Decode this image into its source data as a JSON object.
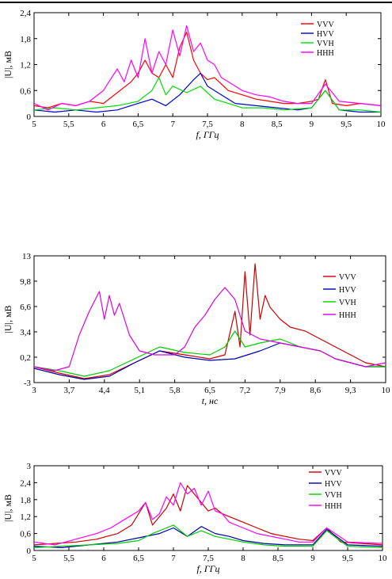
{
  "chart_data": [
    {
      "type": "line",
      "xlabel": "f, ГГц",
      "ylabel": "|U|, мВ",
      "xlim": [
        5,
        10
      ],
      "ylim": [
        0,
        2.4
      ],
      "xticks": [
        "5",
        "5,5",
        "6",
        "6,5",
        "7",
        "7,5",
        "8",
        "8,5",
        "9",
        "9,5",
        "10"
      ],
      "yticks": [
        "0",
        "0,6",
        "1,2",
        "1,8",
        "2,4"
      ],
      "legend_position": "top-right",
      "series": [
        {
          "name": "VVV",
          "color": "#ff0000",
          "x": [
            5.0,
            5.2,
            5.4,
            5.6,
            5.8,
            6.0,
            6.2,
            6.4,
            6.5,
            6.6,
            6.7,
            6.8,
            6.9,
            7.0,
            7.1,
            7.2,
            7.3,
            7.4,
            7.5,
            7.6,
            7.7,
            7.8,
            8.0,
            8.2,
            8.4,
            8.6,
            8.8,
            9.0,
            9.1,
            9.2,
            9.3,
            9.5,
            9.7,
            10.0
          ],
          "y": [
            0.25,
            0.2,
            0.3,
            0.25,
            0.35,
            0.3,
            0.55,
            0.8,
            1.0,
            1.3,
            1.0,
            0.9,
            1.2,
            0.9,
            1.6,
            1.95,
            1.3,
            1.0,
            0.85,
            0.9,
            0.75,
            0.6,
            0.5,
            0.4,
            0.35,
            0.3,
            0.3,
            0.35,
            0.4,
            0.85,
            0.3,
            0.25,
            0.3,
            0.25
          ]
        },
        {
          "name": "HVV",
          "color": "#0000cc",
          "x": [
            5.0,
            5.3,
            5.6,
            5.9,
            6.2,
            6.5,
            6.7,
            6.9,
            7.1,
            7.3,
            7.4,
            7.5,
            7.7,
            7.9,
            8.2,
            8.5,
            8.8,
            9.0,
            9.2,
            9.4,
            9.7,
            10.0
          ],
          "y": [
            0.15,
            0.1,
            0.15,
            0.1,
            0.15,
            0.3,
            0.4,
            0.25,
            0.5,
            0.85,
            1.0,
            0.7,
            0.5,
            0.3,
            0.25,
            0.2,
            0.15,
            0.2,
            0.6,
            0.15,
            0.1,
            0.1
          ]
        },
        {
          "name": "VVH",
          "color": "#00dd00",
          "x": [
            5.0,
            5.3,
            5.6,
            5.9,
            6.2,
            6.5,
            6.7,
            6.8,
            6.9,
            7.0,
            7.2,
            7.4,
            7.5,
            7.6,
            7.8,
            8.0,
            8.3,
            8.6,
            9.0,
            9.2,
            9.4,
            9.7,
            10.0
          ],
          "y": [
            0.15,
            0.2,
            0.15,
            0.2,
            0.25,
            0.35,
            0.6,
            0.9,
            0.5,
            0.7,
            0.55,
            0.7,
            0.55,
            0.4,
            0.3,
            0.2,
            0.2,
            0.15,
            0.2,
            0.6,
            0.15,
            0.15,
            0.1
          ]
        },
        {
          "name": "HHH",
          "color": "#ff00ff",
          "x": [
            5.0,
            5.2,
            5.4,
            5.6,
            5.8,
            6.0,
            6.2,
            6.3,
            6.4,
            6.5,
            6.6,
            6.7,
            6.8,
            6.9,
            7.0,
            7.1,
            7.2,
            7.3,
            7.4,
            7.5,
            7.6,
            7.7,
            7.8,
            8.0,
            8.2,
            8.4,
            8.6,
            8.8,
            9.0,
            9.2,
            9.4,
            9.7,
            10.0
          ],
          "y": [
            0.3,
            0.15,
            0.3,
            0.25,
            0.35,
            0.6,
            1.1,
            0.8,
            1.3,
            0.9,
            1.8,
            1.0,
            1.5,
            1.2,
            2.0,
            1.4,
            2.1,
            1.5,
            1.7,
            1.3,
            1.2,
            0.9,
            0.8,
            0.6,
            0.5,
            0.45,
            0.35,
            0.3,
            0.3,
            0.75,
            0.35,
            0.3,
            0.25
          ]
        }
      ]
    },
    {
      "type": "line",
      "xlabel": "t, нс",
      "ylabel": "|U|, мВ",
      "xlim": [
        3,
        10
      ],
      "ylim": [
        -3,
        13
      ],
      "xticks": [
        "3",
        "3,7",
        "4,4",
        "5,1",
        "5,8",
        "6,5",
        "7,2",
        "7,9",
        "8,6",
        "9,3",
        "10"
      ],
      "yticks": [
        "-3",
        "0,2",
        "3,4",
        "6,6",
        "9,8",
        "13"
      ],
      "legend_position": "right",
      "series": [
        {
          "name": "VVV",
          "color": "#cc0000",
          "x": [
            3.0,
            3.5,
            4.0,
            4.5,
            5.0,
            5.5,
            6.0,
            6.5,
            6.8,
            7.0,
            7.1,
            7.2,
            7.3,
            7.4,
            7.5,
            7.6,
            7.7,
            7.9,
            8.1,
            8.4,
            8.7,
            9.0,
            9.3,
            9.6,
            10.0
          ],
          "y": [
            -1.0,
            -1.8,
            -2.5,
            -2.0,
            -0.5,
            1.0,
            0.5,
            0.0,
            0.5,
            6.0,
            1.5,
            11.0,
            3.0,
            12.0,
            5.0,
            8.0,
            6.5,
            5.0,
            4.0,
            3.5,
            2.5,
            1.5,
            0.5,
            -0.5,
            -1.0
          ]
        },
        {
          "name": "HVV",
          "color": "#0000aa",
          "x": [
            3.0,
            3.5,
            4.0,
            4.5,
            5.0,
            5.5,
            6.0,
            6.5,
            7.0,
            7.5,
            7.9,
            8.3,
            8.7,
            9.0,
            9.3,
            9.6,
            10.0
          ],
          "y": [
            -1.2,
            -2.0,
            -2.6,
            -2.2,
            -0.5,
            1.0,
            0.2,
            -0.2,
            0.0,
            1.0,
            2.0,
            1.5,
            1.0,
            0.0,
            -0.5,
            -1.0,
            -1.0
          ]
        },
        {
          "name": "VVH",
          "color": "#00cc00",
          "x": [
            3.0,
            3.5,
            4.0,
            4.5,
            5.0,
            5.5,
            6.0,
            6.5,
            6.8,
            7.0,
            7.2,
            7.5,
            7.9,
            8.3,
            8.7,
            9.0,
            9.3,
            9.6,
            10.0
          ],
          "y": [
            -1.0,
            -1.5,
            -2.2,
            -1.5,
            0.0,
            1.5,
            0.8,
            0.5,
            1.5,
            3.5,
            1.5,
            2.0,
            2.5,
            1.5,
            1.0,
            0.0,
            -0.5,
            -1.0,
            -1.0
          ]
        },
        {
          "name": "HHH",
          "color": "#dd00dd",
          "x": [
            3.0,
            3.4,
            3.7,
            3.9,
            4.1,
            4.3,
            4.4,
            4.5,
            4.6,
            4.7,
            4.9,
            5.1,
            5.4,
            5.8,
            6.0,
            6.2,
            6.4,
            6.6,
            6.8,
            7.0,
            7.2,
            7.5,
            7.9,
            8.3,
            8.7,
            9.0,
            9.3,
            9.6,
            10.0
          ],
          "y": [
            -1.0,
            -1.5,
            -1.0,
            3.0,
            6.0,
            8.5,
            5.0,
            8.0,
            5.5,
            7.0,
            3.0,
            1.0,
            0.5,
            0.5,
            1.5,
            4.0,
            5.5,
            7.5,
            9.0,
            7.5,
            3.5,
            2.5,
            2.0,
            1.5,
            1.0,
            0.0,
            -0.5,
            -1.0,
            -0.5
          ]
        }
      ]
    },
    {
      "type": "line",
      "xlabel": "f, ГГц",
      "ylabel": "|U|, мВ",
      "xlim": [
        5,
        10
      ],
      "ylim": [
        0,
        3
      ],
      "xticks": [
        "5",
        "5,5",
        "6",
        "6,5",
        "7",
        "7,5",
        "8",
        "8,5",
        "9",
        "9,5",
        "10"
      ],
      "yticks": [
        "0",
        "0,6",
        "1,2",
        "1,8",
        "2,4",
        "3"
      ],
      "legend_position": "top-right",
      "series": [
        {
          "name": "VVV",
          "color": "#cc0000",
          "x": [
            5.0,
            5.3,
            5.6,
            5.9,
            6.2,
            6.4,
            6.6,
            6.7,
            6.8,
            6.9,
            7.0,
            7.1,
            7.2,
            7.3,
            7.4,
            7.5,
            7.6,
            7.7,
            7.8,
            8.0,
            8.2,
            8.4,
            8.6,
            8.8,
            9.0,
            9.2,
            9.4,
            9.7,
            10.0
          ],
          "y": [
            0.2,
            0.25,
            0.3,
            0.4,
            0.6,
            0.9,
            1.7,
            0.9,
            1.2,
            1.5,
            2.0,
            1.4,
            2.3,
            2.0,
            1.7,
            1.4,
            1.5,
            1.3,
            1.2,
            1.0,
            0.8,
            0.6,
            0.5,
            0.4,
            0.35,
            0.8,
            0.3,
            0.25,
            0.2
          ]
        },
        {
          "name": "HVV",
          "color": "#0000aa",
          "x": [
            5.0,
            5.4,
            5.8,
            6.2,
            6.5,
            6.8,
            7.0,
            7.2,
            7.4,
            7.6,
            7.8,
            8.0,
            8.3,
            8.6,
            9.0,
            9.2,
            9.5,
            10.0
          ],
          "y": [
            0.15,
            0.1,
            0.2,
            0.3,
            0.45,
            0.6,
            0.8,
            0.5,
            0.85,
            0.6,
            0.5,
            0.35,
            0.25,
            0.2,
            0.2,
            0.75,
            0.2,
            0.15
          ]
        },
        {
          "name": "VVH",
          "color": "#00cc00",
          "x": [
            5.0,
            5.4,
            5.8,
            6.2,
            6.5,
            6.7,
            6.9,
            7.0,
            7.2,
            7.4,
            7.6,
            7.8,
            8.0,
            8.3,
            8.6,
            9.0,
            9.2,
            9.5,
            10.0
          ],
          "y": [
            0.1,
            0.15,
            0.2,
            0.25,
            0.35,
            0.6,
            0.8,
            0.9,
            0.5,
            0.7,
            0.5,
            0.4,
            0.3,
            0.2,
            0.15,
            0.15,
            0.7,
            0.15,
            0.1
          ]
        },
        {
          "name": "HHH",
          "color": "#ff00ff",
          "x": [
            5.0,
            5.3,
            5.6,
            5.9,
            6.1,
            6.3,
            6.5,
            6.6,
            6.7,
            6.8,
            6.9,
            7.0,
            7.1,
            7.2,
            7.3,
            7.4,
            7.5,
            7.6,
            7.7,
            7.8,
            8.0,
            8.2,
            8.4,
            8.6,
            8.8,
            9.0,
            9.2,
            9.5,
            10.0
          ],
          "y": [
            0.3,
            0.2,
            0.4,
            0.6,
            0.8,
            1.1,
            1.4,
            1.7,
            1.1,
            1.3,
            1.9,
            1.6,
            2.4,
            2.0,
            2.2,
            1.6,
            2.1,
            1.4,
            1.3,
            1.0,
            0.8,
            0.6,
            0.5,
            0.4,
            0.3,
            0.3,
            0.8,
            0.3,
            0.25
          ]
        }
      ]
    }
  ]
}
